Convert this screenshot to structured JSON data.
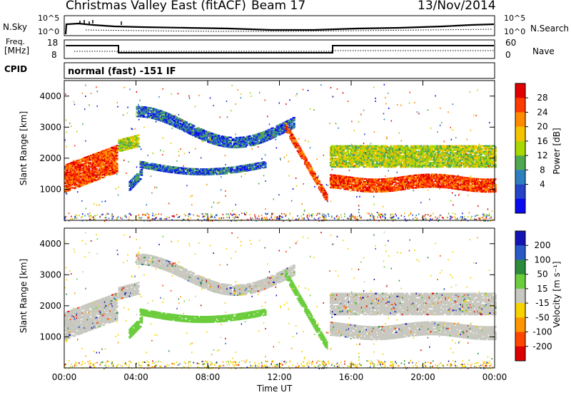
{
  "header": {
    "title": "Christmas Valley East (fitACF)",
    "beam": "Beam 17",
    "date": "13/Nov/2014"
  },
  "panels": {
    "nsky_label": "N.Sky",
    "nsearch_label": "N.Search",
    "freq_label_line1": "Freq.",
    "freq_label_line2": "[MHz]",
    "nave_label": "Nave",
    "cpid_label": "CPID",
    "cpid_text": "normal (fast) -151 IF",
    "nsky_ticks": [
      "10^5",
      "10^0"
    ],
    "nsearch_ticks": [
      "10^5",
      "10^0"
    ],
    "freq_ticks": [
      "18",
      "8"
    ],
    "nave_ticks": [
      "60",
      "0"
    ]
  },
  "chart_data": [
    {
      "type": "heatmap",
      "title": "",
      "xlabel": "",
      "ylabel": "Slant Range [km]",
      "xlim": [
        0,
        24
      ],
      "ylim": [
        0,
        4500
      ],
      "x_ticks": [
        "00:00",
        "04:00",
        "08:00",
        "12:00",
        "16:00",
        "20:00",
        "00:00"
      ],
      "y_ticks": [
        1000,
        2000,
        3000,
        4000
      ],
      "colorbar": {
        "label": "Power [dB]",
        "ticks": [
          "28",
          "24",
          "20",
          "16",
          "12",
          "8",
          "4"
        ],
        "colors": [
          "#e00000",
          "#ff3a00",
          "#ff8c00",
          "#f5c400",
          "#a8d800",
          "#4fa84f",
          "#2e7fbf",
          "#2544c8",
          "#0a0af0"
        ]
      }
    },
    {
      "type": "heatmap",
      "title": "",
      "xlabel": "Time UT",
      "ylabel": "Slant Range [km]",
      "xlim": [
        0,
        24
      ],
      "ylim": [
        0,
        4500
      ],
      "x_ticks": [
        "00:00",
        "04:00",
        "08:00",
        "12:00",
        "16:00",
        "20:00",
        "00:00"
      ],
      "y_ticks": [
        1000,
        2000,
        3000,
        4000
      ],
      "colorbar": {
        "label": "Velocity [m s⁻¹]",
        "ticks": [
          "200",
          "100",
          "50",
          "15",
          "-15",
          "-50",
          "-100",
          "-200"
        ],
        "colors": [
          "#1414b4",
          "#2a5ac8",
          "#2c8c3c",
          "#6ccd3c",
          "#c8c8c0",
          "#f5d200",
          "#ff9600",
          "#ff4600",
          "#dc0000"
        ]
      }
    }
  ]
}
